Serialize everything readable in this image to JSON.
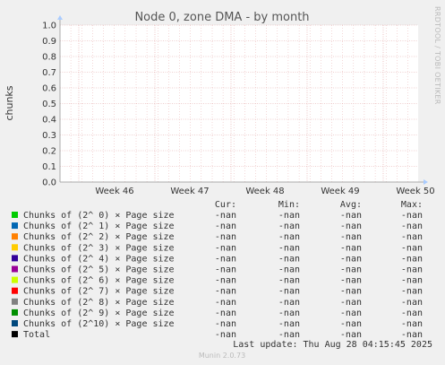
{
  "chart_data": {
    "type": "line",
    "title": "Node 0, zone DMA - by month",
    "ylabel": "chunks",
    "xlabel": "",
    "ylim": [
      0.0,
      1.0
    ],
    "y_ticks": [
      "0.0",
      "0.1",
      "0.2",
      "0.3",
      "0.4",
      "0.5",
      "0.6",
      "0.7",
      "0.8",
      "0.9",
      "1.0"
    ],
    "x_ticks": [
      "Week 46",
      "Week 47",
      "Week 48",
      "Week 49",
      "Week 50"
    ],
    "grid": true,
    "side_label": "RRDTOOL / TOBI OETIKER",
    "columns": [
      "Cur:",
      "Min:",
      "Avg:",
      "Max:"
    ],
    "series": [
      {
        "name": "Chunks of (2^ 0) × Page size",
        "color": "#00cc00",
        "values": [
          "-nan",
          "-nan",
          "-nan",
          "-nan"
        ]
      },
      {
        "name": "Chunks of (2^ 1) × Page size",
        "color": "#0066b3",
        "values": [
          "-nan",
          "-nan",
          "-nan",
          "-nan"
        ]
      },
      {
        "name": "Chunks of (2^ 2) × Page size",
        "color": "#ff8000",
        "values": [
          "-nan",
          "-nan",
          "-nan",
          "-nan"
        ]
      },
      {
        "name": "Chunks of (2^ 3) × Page size",
        "color": "#ffcc00",
        "values": [
          "-nan",
          "-nan",
          "-nan",
          "-nan"
        ]
      },
      {
        "name": "Chunks of (2^ 4) × Page size",
        "color": "#330099",
        "values": [
          "-nan",
          "-nan",
          "-nan",
          "-nan"
        ]
      },
      {
        "name": "Chunks of (2^ 5) × Page size",
        "color": "#990099",
        "values": [
          "-nan",
          "-nan",
          "-nan",
          "-nan"
        ]
      },
      {
        "name": "Chunks of (2^ 6) × Page size",
        "color": "#ccff00",
        "values": [
          "-nan",
          "-nan",
          "-nan",
          "-nan"
        ]
      },
      {
        "name": "Chunks of (2^ 7) × Page size",
        "color": "#ff0000",
        "values": [
          "-nan",
          "-nan",
          "-nan",
          "-nan"
        ]
      },
      {
        "name": "Chunks of (2^ 8) × Page size",
        "color": "#808080",
        "values": [
          "-nan",
          "-nan",
          "-nan",
          "-nan"
        ]
      },
      {
        "name": "Chunks of (2^ 9) × Page size",
        "color": "#008f00",
        "values": [
          "-nan",
          "-nan",
          "-nan",
          "-nan"
        ]
      },
      {
        "name": "Chunks of (2^10) × Page size",
        "color": "#00487d",
        "values": [
          "-nan",
          "-nan",
          "-nan",
          "-nan"
        ]
      },
      {
        "name": "Total",
        "color": "#000000",
        "values": [
          "-nan",
          "-nan",
          "-nan",
          "-nan"
        ]
      }
    ],
    "last_update": "Last update: Thu Aug 28 04:15:45 2025",
    "footer": "Munin 2.0.73"
  }
}
